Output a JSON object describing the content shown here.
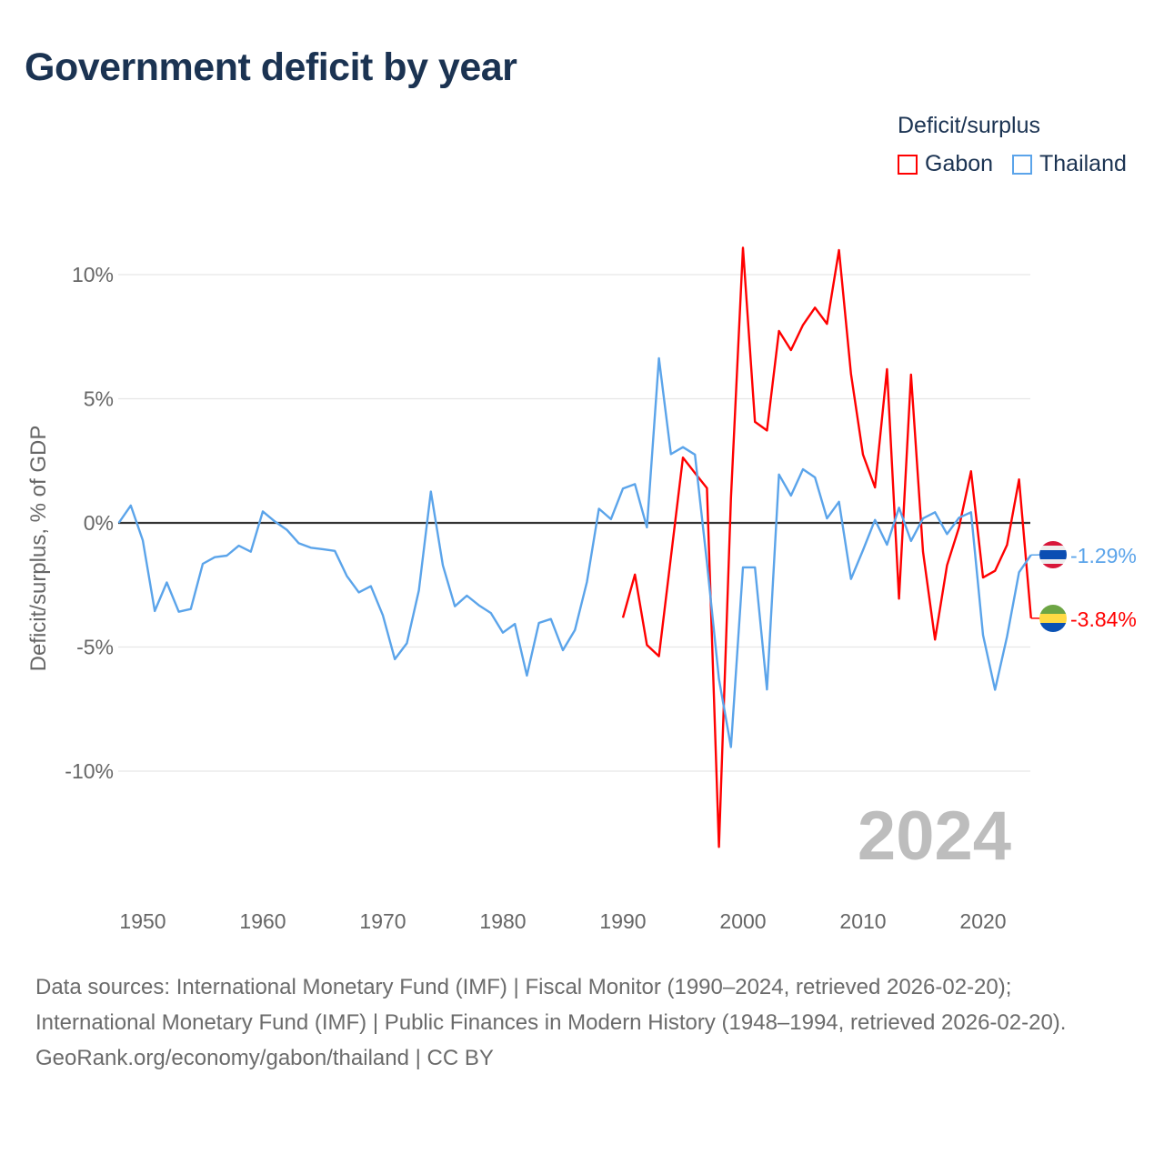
{
  "chart_data": {
    "type": "line",
    "title": "Government deficit by year",
    "ylabel": "Deficit/surplus, % of GDP",
    "xlabel": "",
    "xlim": [
      1948,
      2024
    ],
    "ylim": [
      -13.5,
      11.5
    ],
    "x_ticks": [
      1950,
      1960,
      1970,
      1980,
      1990,
      2000,
      2010,
      2020
    ],
    "x_tick_labels": [
      "1950",
      "1960",
      "1970",
      "1980",
      "1990",
      "2000",
      "2010",
      "2020"
    ],
    "y_ticks": [
      10,
      5,
      0,
      -5,
      -10
    ],
    "y_tick_labels": [
      "10%",
      "5%",
      "0%",
      "-5%",
      "-10%"
    ],
    "grid": true,
    "legend_title": "Deficit/surplus",
    "legend_position": "top-right",
    "year_watermark": "2024",
    "series": [
      {
        "name": "Gabon",
        "color": "#ff0000",
        "end_label": "-3.84%",
        "flag": "gabon-flag",
        "x": [
          1990,
          1991,
          1992,
          1993,
          1994,
          1995,
          1996,
          1997,
          1998,
          1999,
          2000,
          2001,
          2002,
          2003,
          2004,
          2005,
          2006,
          2007,
          2008,
          2009,
          2010,
          2011,
          2012,
          2013,
          2014,
          2015,
          2016,
          2017,
          2018,
          2019,
          2020,
          2021,
          2022,
          2023,
          2024
        ],
        "values": [
          -3.82,
          -2.08,
          -4.92,
          -5.37,
          -1.37,
          2.63,
          2.01,
          1.4,
          -13.05,
          1.0,
          11.08,
          4.07,
          3.72,
          7.73,
          6.96,
          7.97,
          8.67,
          8.02,
          10.99,
          6.0,
          2.75,
          1.43,
          6.19,
          -3.05,
          5.97,
          -1.16,
          -4.7,
          -1.71,
          -0.18,
          2.08,
          -2.2,
          -1.93,
          -0.89,
          1.75,
          -3.84
        ]
      },
      {
        "name": "Thailand",
        "color": "#5ba4ea",
        "end_label": "-1.29%",
        "flag": "thailand-flag",
        "x": [
          1948,
          1949,
          1950,
          1951,
          1952,
          1953,
          1954,
          1955,
          1956,
          1957,
          1958,
          1959,
          1960,
          1961,
          1962,
          1963,
          1964,
          1965,
          1966,
          1967,
          1968,
          1969,
          1970,
          1971,
          1972,
          1973,
          1974,
          1975,
          1976,
          1977,
          1978,
          1979,
          1980,
          1981,
          1982,
          1983,
          1984,
          1985,
          1986,
          1987,
          1988,
          1989,
          1990,
          1991,
          1992,
          1993,
          1994,
          1995,
          1996,
          1997,
          1998,
          1999,
          2000,
          2001,
          2002,
          2003,
          2004,
          2005,
          2006,
          2007,
          2008,
          2009,
          2010,
          2011,
          2012,
          2013,
          2014,
          2015,
          2016,
          2017,
          2018,
          2019,
          2020,
          2021,
          2022,
          2023,
          2024
        ],
        "values": [
          0,
          0.7,
          -0.7,
          -3.55,
          -2.4,
          -3.58,
          -3.47,
          -1.65,
          -1.38,
          -1.32,
          -0.92,
          -1.16,
          0.46,
          0.06,
          -0.28,
          -0.82,
          -1.0,
          -1.06,
          -1.13,
          -2.14,
          -2.8,
          -2.55,
          -3.72,
          -5.49,
          -4.85,
          -2.72,
          1.26,
          -1.71,
          -3.36,
          -2.93,
          -3.32,
          -3.63,
          -4.42,
          -4.07,
          -6.15,
          -4.03,
          -3.87,
          -5.13,
          -4.32,
          -2.38,
          0.57,
          0.15,
          1.38,
          1.56,
          -0.18,
          6.63,
          2.77,
          3.05,
          2.75,
          -1.6,
          -6.29,
          -9.03,
          -1.79,
          -1.79,
          -6.71,
          1.95,
          1.1,
          2.16,
          1.83,
          0.18,
          0.85,
          -2.26,
          -1.1,
          0.12,
          -0.88,
          0.61,
          -0.73,
          0.18,
          0.43,
          -0.45,
          0.21,
          0.43,
          -4.52,
          -6.72,
          -4.58,
          -1.99,
          -1.29
        ]
      }
    ]
  },
  "footer": {
    "sources": "Data sources: International Monetary Fund (IMF) | Fiscal Monitor (1990–2024, retrieved 2026-02-20); International Monetary Fund (IMF) | Public Finances in Modern History (1948–1994, retrieved 2026-02-20).",
    "credit": "GeoRank.org/economy/gabon/thailand | CC BY"
  }
}
